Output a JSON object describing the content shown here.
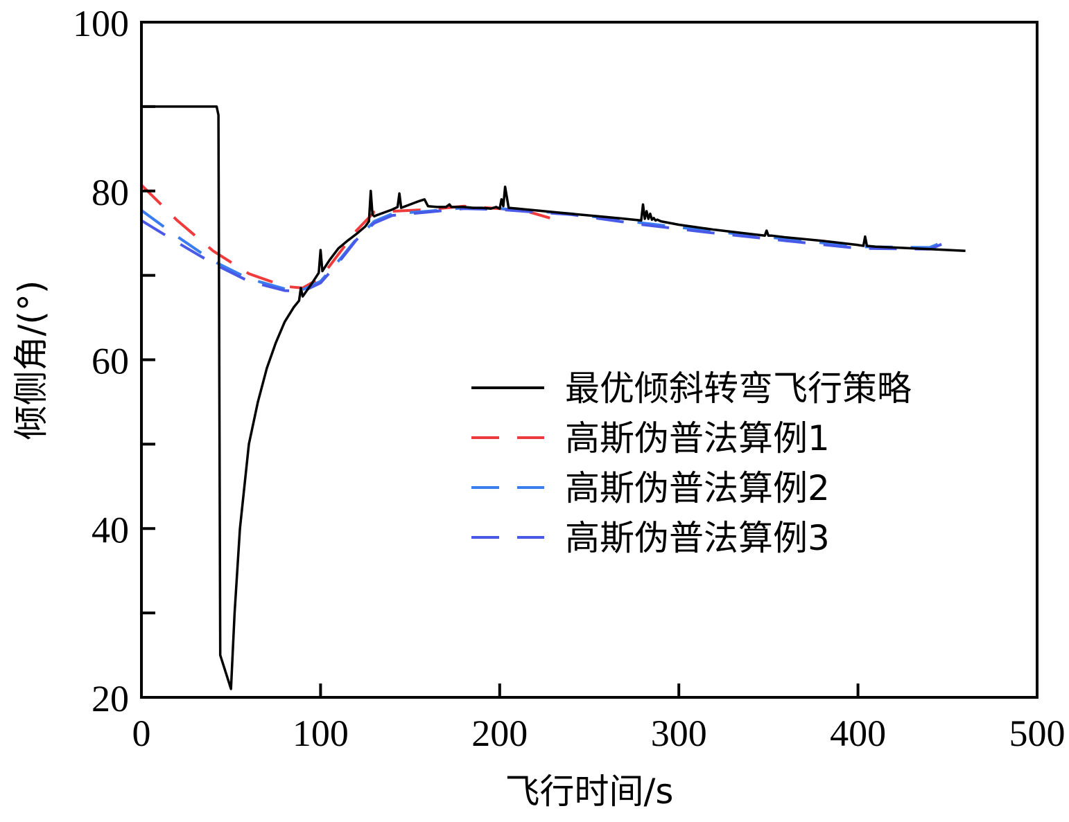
{
  "chart_data": {
    "type": "line",
    "xlabel": "飞行时间/s",
    "ylabel": "倾侧角/(°)",
    "xlim": [
      0,
      500
    ],
    "ylim": [
      20,
      100
    ],
    "xticks": [
      0,
      100,
      200,
      300,
      400,
      500
    ],
    "yticks": [
      20,
      40,
      60,
      80,
      100
    ],
    "y_minor_ticks": [
      30,
      50,
      70,
      90
    ],
    "legend_position": "center-right",
    "series": [
      {
        "name": "最优倾斜转弯飞行策略",
        "color": "#000000",
        "dash": "solid",
        "x": [
          0,
          42,
          43,
          44,
          50,
          52,
          55,
          60,
          65,
          70,
          75,
          80,
          85,
          88,
          89,
          90,
          95,
          99,
          100,
          101,
          105,
          110,
          115,
          120,
          125,
          127,
          128,
          129,
          130,
          131,
          135,
          140,
          143,
          144,
          145,
          150,
          155,
          158,
          160,
          165,
          170,
          172,
          173,
          175,
          180,
          185,
          190,
          195,
          198,
          200,
          201,
          202,
          203,
          205,
          210,
          220,
          240,
          260,
          270,
          279,
          280,
          281,
          282,
          283,
          284,
          285,
          286,
          287,
          288,
          290,
          300,
          320,
          340,
          348,
          349,
          350,
          352,
          360,
          380,
          400,
          403,
          404,
          405,
          410,
          420,
          440,
          460
        ],
        "y": [
          90,
          90,
          89,
          25,
          21,
          30,
          40,
          50,
          55,
          59,
          62,
          64.5,
          66.2,
          67,
          68.5,
          67.5,
          69,
          70.3,
          73,
          70.5,
          71.8,
          73.2,
          74.1,
          74.9,
          75.8,
          76.4,
          80,
          77.2,
          77,
          77.1,
          77.4,
          77.8,
          78.1,
          79.7,
          78,
          78.4,
          78.8,
          79,
          78.2,
          78.1,
          78.1,
          78.4,
          78.1,
          78.1,
          78.1,
          78,
          78,
          77.9,
          78.1,
          77.9,
          79,
          78.2,
          80.5,
          78,
          77.9,
          77.7,
          77.3,
          76.9,
          76.7,
          76.5,
          78.4,
          76.7,
          77.6,
          76.7,
          77.3,
          76.6,
          76.8,
          76.5,
          76.6,
          76.4,
          76,
          75.4,
          74.9,
          74.7,
          75.3,
          74.7,
          74.7,
          74.5,
          74.1,
          73.6,
          73.5,
          74.6,
          73.5,
          73.4,
          73.3,
          73.1,
          72.9
        ]
      },
      {
        "name": "高斯伪普法算例1",
        "color": "#ef3b3b",
        "dash": "40 26",
        "x": [
          0,
          20,
          40,
          60,
          80,
          90,
          100,
          110,
          120,
          130,
          140,
          160,
          180,
          200,
          215,
          228
        ],
        "y": [
          80.7,
          76.5,
          72.9,
          70.2,
          68.7,
          68.5,
          69.7,
          72.5,
          75.3,
          77.5,
          77.6,
          77.8,
          78.2,
          77.9,
          77.6,
          76.8
        ]
      },
      {
        "name": "高斯伪普法算例2",
        "color": "#3a7df0",
        "dash": "40 26",
        "x": [
          0,
          20,
          40,
          60,
          80,
          90,
          100,
          110,
          120,
          130,
          140,
          160,
          180,
          200,
          240,
          280,
          320,
          360,
          400,
          440,
          448
        ],
        "y": [
          77.7,
          74.6,
          71.7,
          69.6,
          68.4,
          68.3,
          69.3,
          71.7,
          74.3,
          76.4,
          77.3,
          77.6,
          78,
          77.9,
          77.3,
          76.2,
          75.2,
          74.3,
          73.4,
          73.3,
          74
        ]
      },
      {
        "name": "高斯伪普法算例3",
        "color": "#4a5ae8",
        "dash": "40 26",
        "x": [
          0,
          20,
          40,
          60,
          80,
          90,
          100,
          110,
          120,
          130,
          140,
          160,
          180,
          200,
          240,
          280,
          320,
          360,
          400,
          440,
          448
        ],
        "y": [
          76.5,
          73.9,
          71.4,
          69.3,
          68.2,
          68.1,
          69.1,
          71.5,
          74.2,
          76.2,
          77.1,
          77.5,
          77.9,
          77.8,
          77.2,
          76,
          75,
          74.1,
          73.2,
          73.1,
          73.8
        ]
      }
    ]
  }
}
